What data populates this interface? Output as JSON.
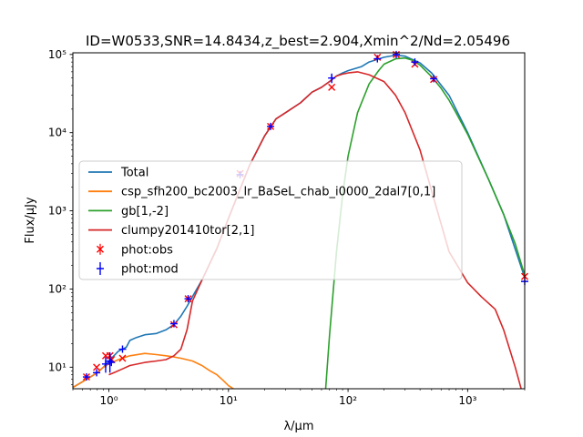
{
  "chart_data": {
    "type": "line",
    "title": "ID=W0533,SNR=14.8434,z_best=2.904,Xmin^2/Nd=2.05496",
    "xlabel": "λ/µm",
    "ylabel": "Flux/µJy",
    "xscale": "log",
    "yscale": "log",
    "xlim": [
      0.5,
      3000
    ],
    "ylim": [
      5.3,
      105000
    ],
    "x_ticks": [
      {
        "value": 1,
        "label": "10⁰"
      },
      {
        "value": 10,
        "label": "10¹"
      },
      {
        "value": 100,
        "label": "10²"
      },
      {
        "value": 1000,
        "label": "10³"
      }
    ],
    "y_ticks": [
      {
        "value": 10,
        "label": "10¹"
      },
      {
        "value": 100,
        "label": "10²"
      },
      {
        "value": 1000,
        "label": "10³"
      },
      {
        "value": 10000,
        "label": "10⁴"
      },
      {
        "value": 100000,
        "label": "10⁵"
      }
    ],
    "grid": false,
    "legend_position": "center-left",
    "series": [
      {
        "name": "Total",
        "color": "#1f77b4",
        "x": [
          0.5,
          0.6,
          0.7,
          0.8,
          0.9,
          1.0,
          1.1,
          1.2,
          1.3,
          1.4,
          1.5,
          1.7,
          2.0,
          2.5,
          3.0,
          3.5,
          4.0,
          4.5,
          5.0,
          6,
          8,
          10,
          15,
          20,
          25,
          30,
          40,
          50,
          60,
          70,
          80,
          90,
          100,
          130,
          150,
          200,
          250,
          300,
          400,
          500,
          700,
          1000,
          1500,
          2000,
          3000
        ],
        "y": [
          5.5,
          6.5,
          7.5,
          8.5,
          10,
          12,
          14,
          16,
          17,
          18,
          22,
          24,
          26,
          27,
          30,
          35,
          45,
          60,
          80,
          130,
          330,
          800,
          3800,
          9000,
          15000,
          18000,
          24000,
          33000,
          38000,
          45000,
          53000,
          58000,
          62000,
          70000,
          80000,
          92000,
          98000,
          95000,
          78000,
          58000,
          30000,
          10000,
          2500,
          900,
          140
        ]
      },
      {
        "name": "csp_sfh200_bc2003_lr_BaSeL_chab_i0000_2dal7[0,1]",
        "color": "#ff7f0e",
        "x": [
          0.5,
          0.6,
          0.7,
          0.8,
          0.9,
          1.0,
          1.2,
          1.5,
          2.0,
          2.5,
          3.0,
          3.5,
          4.0,
          5.0,
          6.0,
          7.0,
          8.0,
          9.0,
          10.0,
          11.0
        ],
        "y": [
          5.5,
          6.5,
          7.5,
          8.5,
          10,
          11,
          12.5,
          14,
          15,
          14.5,
          14,
          13.5,
          13,
          12,
          10.5,
          9,
          8,
          6.8,
          5.8,
          5.3
        ]
      },
      {
        "name": "gb[1,-2]",
        "color": "#2ca02c",
        "x": [
          65,
          70,
          80,
          90,
          100,
          120,
          150,
          180,
          200,
          250,
          300,
          350,
          400,
          500,
          600,
          700,
          800,
          1000,
          1500,
          2000,
          2500,
          3000
        ],
        "y": [
          5.3,
          25,
          300,
          1600,
          5000,
          18000,
          42000,
          62000,
          75000,
          88000,
          90000,
          84000,
          73000,
          52000,
          37000,
          26000,
          18000,
          9500,
          2500,
          900,
          380,
          150
        ]
      },
      {
        "name": "clumpy201410tor[2,1]",
        "color": "#d62728",
        "x": [
          1.0,
          1.1,
          1.3,
          1.5,
          2.0,
          2.5,
          3.0,
          3.5,
          4.0,
          4.5,
          5.0,
          6,
          8,
          10,
          15,
          20,
          25,
          30,
          40,
          50,
          60,
          70,
          80,
          90,
          100,
          120,
          150,
          200,
          250,
          300,
          400,
          500,
          700,
          1000,
          1300,
          1700,
          2000,
          2500,
          2800
        ],
        "y": [
          8,
          8.5,
          9.5,
          10.5,
          11.5,
          12,
          12.5,
          14,
          17,
          30,
          70,
          130,
          330,
          800,
          3800,
          9000,
          15000,
          18000,
          24000,
          33000,
          38000,
          45000,
          53000,
          56000,
          58000,
          60000,
          55000,
          45000,
          30000,
          18000,
          6000,
          1800,
          300,
          120,
          80,
          55,
          30,
          10,
          5.3
        ]
      }
    ],
    "scatter_series": [
      {
        "name": "phot:obs",
        "marker": "x",
        "color": "#ff0000",
        "x": [
          0.65,
          0.79,
          0.94,
          1.02,
          1.05,
          1.3,
          3.5,
          4.6,
          12.5,
          22.5,
          73,
          176,
          253,
          362,
          520,
          3000
        ],
        "y": [
          7.5,
          10,
          14,
          14,
          12.5,
          13,
          35,
          75,
          3000,
          12000,
          38000,
          92000,
          100000,
          75000,
          48000,
          145
        ]
      },
      {
        "name": "phot:mod",
        "marker": "+",
        "color": "#0000ff",
        "x": [
          0.65,
          0.79,
          0.94,
          1.02,
          1.05,
          1.3,
          3.5,
          4.6,
          12.5,
          22.5,
          73,
          176,
          253,
          362,
          520,
          3000
        ],
        "y": [
          7.5,
          8.5,
          11,
          12,
          11.5,
          17,
          36,
          75,
          2900,
          12000,
          50000,
          88000,
          100000,
          80000,
          49000,
          125
        ],
        "yerr": [
          0,
          0,
          2.5,
          3.5,
          0,
          0,
          0,
          0,
          0,
          0,
          7000,
          0,
          0,
          0,
          0,
          0
        ]
      }
    ]
  }
}
